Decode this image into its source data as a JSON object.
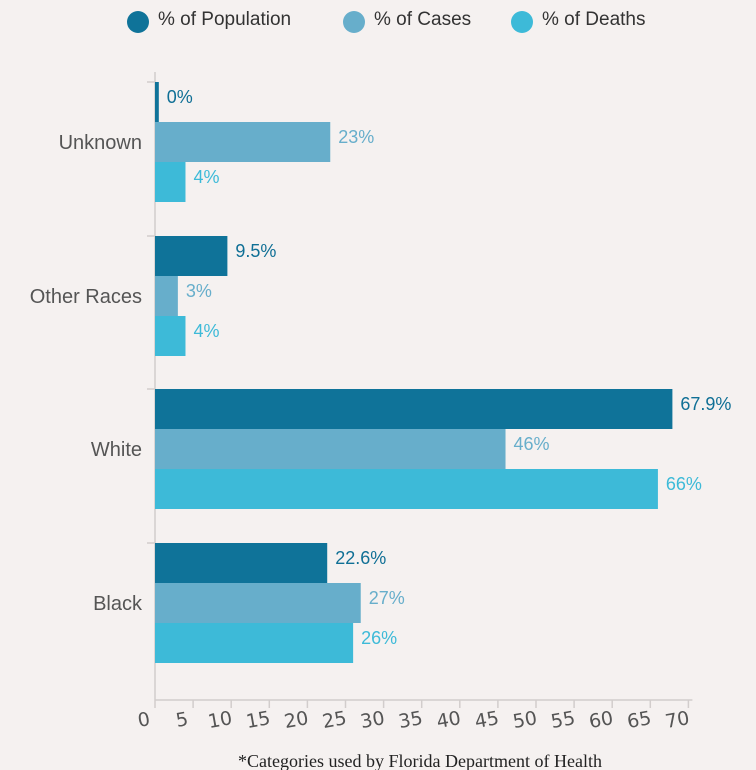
{
  "chart_data": {
    "type": "bar",
    "orientation": "horizontal",
    "categories": [
      "Unknown",
      "Other Races",
      "White",
      "Black"
    ],
    "series": [
      {
        "name": "% of Population",
        "color": "#0f7399",
        "values": [
          0.5,
          9.5,
          67.9,
          22.6
        ],
        "labels": [
          "0%",
          "9.5%",
          "67.9%",
          "22.6%"
        ]
      },
      {
        "name": "% of Cases",
        "color": "#67aecb",
        "values": [
          23,
          3,
          46,
          27
        ],
        "labels": [
          "23%",
          "3%",
          "46%",
          "27%"
        ]
      },
      {
        "name": "% of Deaths",
        "color": "#3dbad8",
        "values": [
          4,
          4,
          66,
          26
        ],
        "labels": [
          "4%",
          "4%",
          "66%",
          "26%"
        ]
      }
    ],
    "label_colors": [
      "#0f6f95",
      "#67aecb",
      "#3dbad8"
    ],
    "xticks": [
      0,
      5,
      10,
      15,
      20,
      25,
      30,
      35,
      40,
      45,
      50,
      55,
      60,
      65,
      70
    ],
    "xlim": [
      0,
      70
    ],
    "legend_position": "top",
    "grid": false,
    "footnote": "*Categories used by Florida Department of Health"
  }
}
